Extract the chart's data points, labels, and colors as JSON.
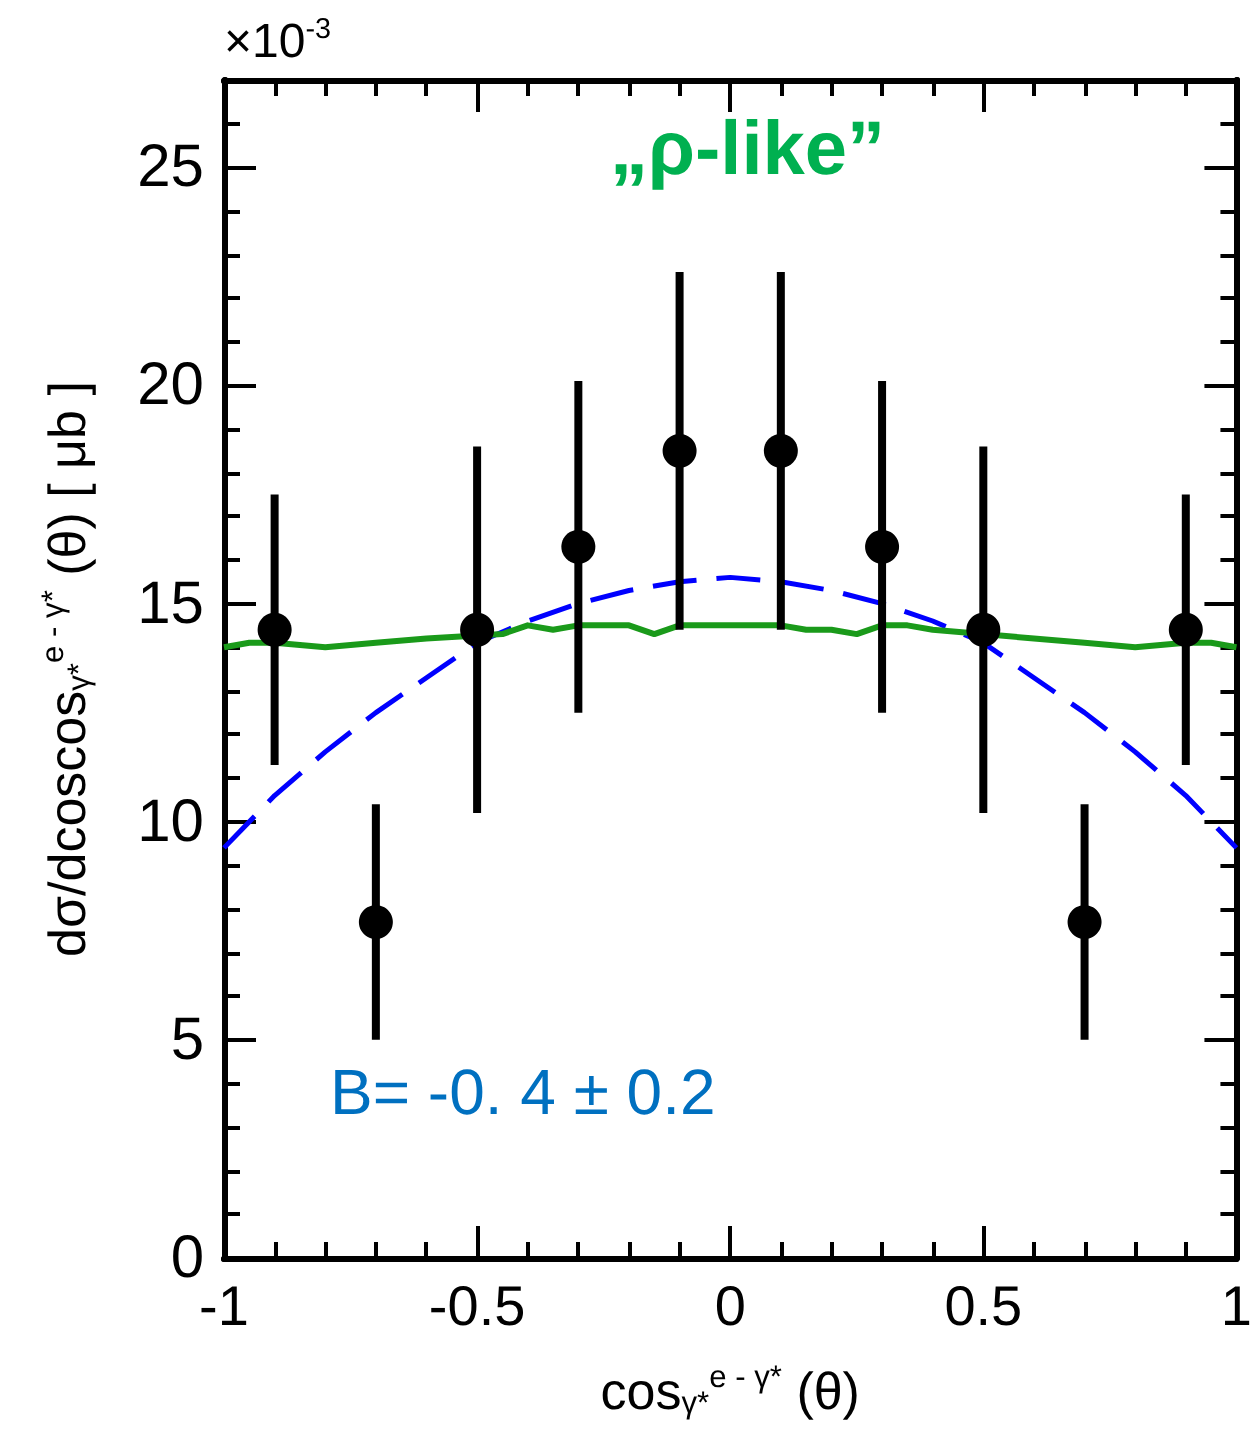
{
  "chart_data": {
    "type": "scatter",
    "xlabel": "cos$_{γ*}$$^{e - γ*}$ (θ)",
    "ylabel": "dσ/dcoscos$_{γ*}$$^{e - γ*}$ (θ) [ μb ]",
    "annotations": [
      "×10$^{-3}$",
      "„ρ-like”",
      "B= -0. 4 ± 0.2"
    ],
    "xlim": [
      -1,
      1
    ],
    "xticks": [
      -1,
      -0.5,
      0,
      0.5,
      1
    ],
    "ylim": [
      0,
      27
    ],
    "yticks": [
      0,
      5,
      10,
      15,
      20,
      25
    ],
    "grid": false,
    "series": [
      {
        "color": "#000000",
        "marker": "circle",
        "x": [
          -0.9,
          -0.7,
          -0.5,
          -0.3,
          -0.1,
          0.1,
          0.3,
          0.5,
          0.7,
          0.9
        ],
        "values": [
          14.4,
          7.7,
          14.4,
          16.3,
          18.5,
          18.5,
          16.3,
          14.4,
          7.7,
          14.4
        ],
        "errors": [
          3.1,
          2.7,
          4.2,
          3.8,
          4.1,
          4.1,
          3.8,
          4.2,
          2.7,
          3.1
        ]
      },
      {
        "type": "line",
        "color": "#0000ff",
        "line_style": "dashed",
        "marker": "none",
        "x": [
          -1,
          -0.9,
          -0.8,
          -0.7,
          -0.6,
          -0.5,
          -0.4,
          -0.3,
          -0.2,
          -0.1,
          0,
          0.1,
          0.2,
          0.3,
          0.4,
          0.5,
          0.6,
          0.7,
          0.8,
          0.9,
          1
        ],
        "values": [
          9.4,
          10.6,
          11.6,
          12.5,
          13.3,
          14.1,
          14.6,
          15.0,
          15.3,
          15.5,
          15.6,
          15.5,
          15.3,
          15.0,
          14.6,
          14.1,
          13.3,
          12.5,
          11.6,
          10.6,
          9.4
        ]
      },
      {
        "type": "line",
        "color": "#1a9a1a",
        "line_style": "solid",
        "marker": "none",
        "x": [
          -1,
          -0.95,
          -0.9,
          -0.8,
          -0.7,
          -0.6,
          -0.45,
          -0.4,
          -0.35,
          -0.3,
          -0.25,
          -0.2,
          -0.15,
          -0.1,
          0,
          0.1,
          0.15,
          0.2,
          0.25,
          0.3,
          0.35,
          0.4,
          0.6,
          0.7,
          0.8,
          0.9,
          0.95,
          1
        ],
        "values": [
          14.0,
          14.1,
          14.1,
          14.0,
          14.1,
          14.2,
          14.3,
          14.5,
          14.4,
          14.5,
          14.5,
          14.5,
          14.3,
          14.5,
          14.5,
          14.5,
          14.4,
          14.4,
          14.3,
          14.5,
          14.5,
          14.4,
          14.2,
          14.1,
          14.0,
          14.1,
          14.1,
          14.0
        ]
      }
    ]
  }
}
